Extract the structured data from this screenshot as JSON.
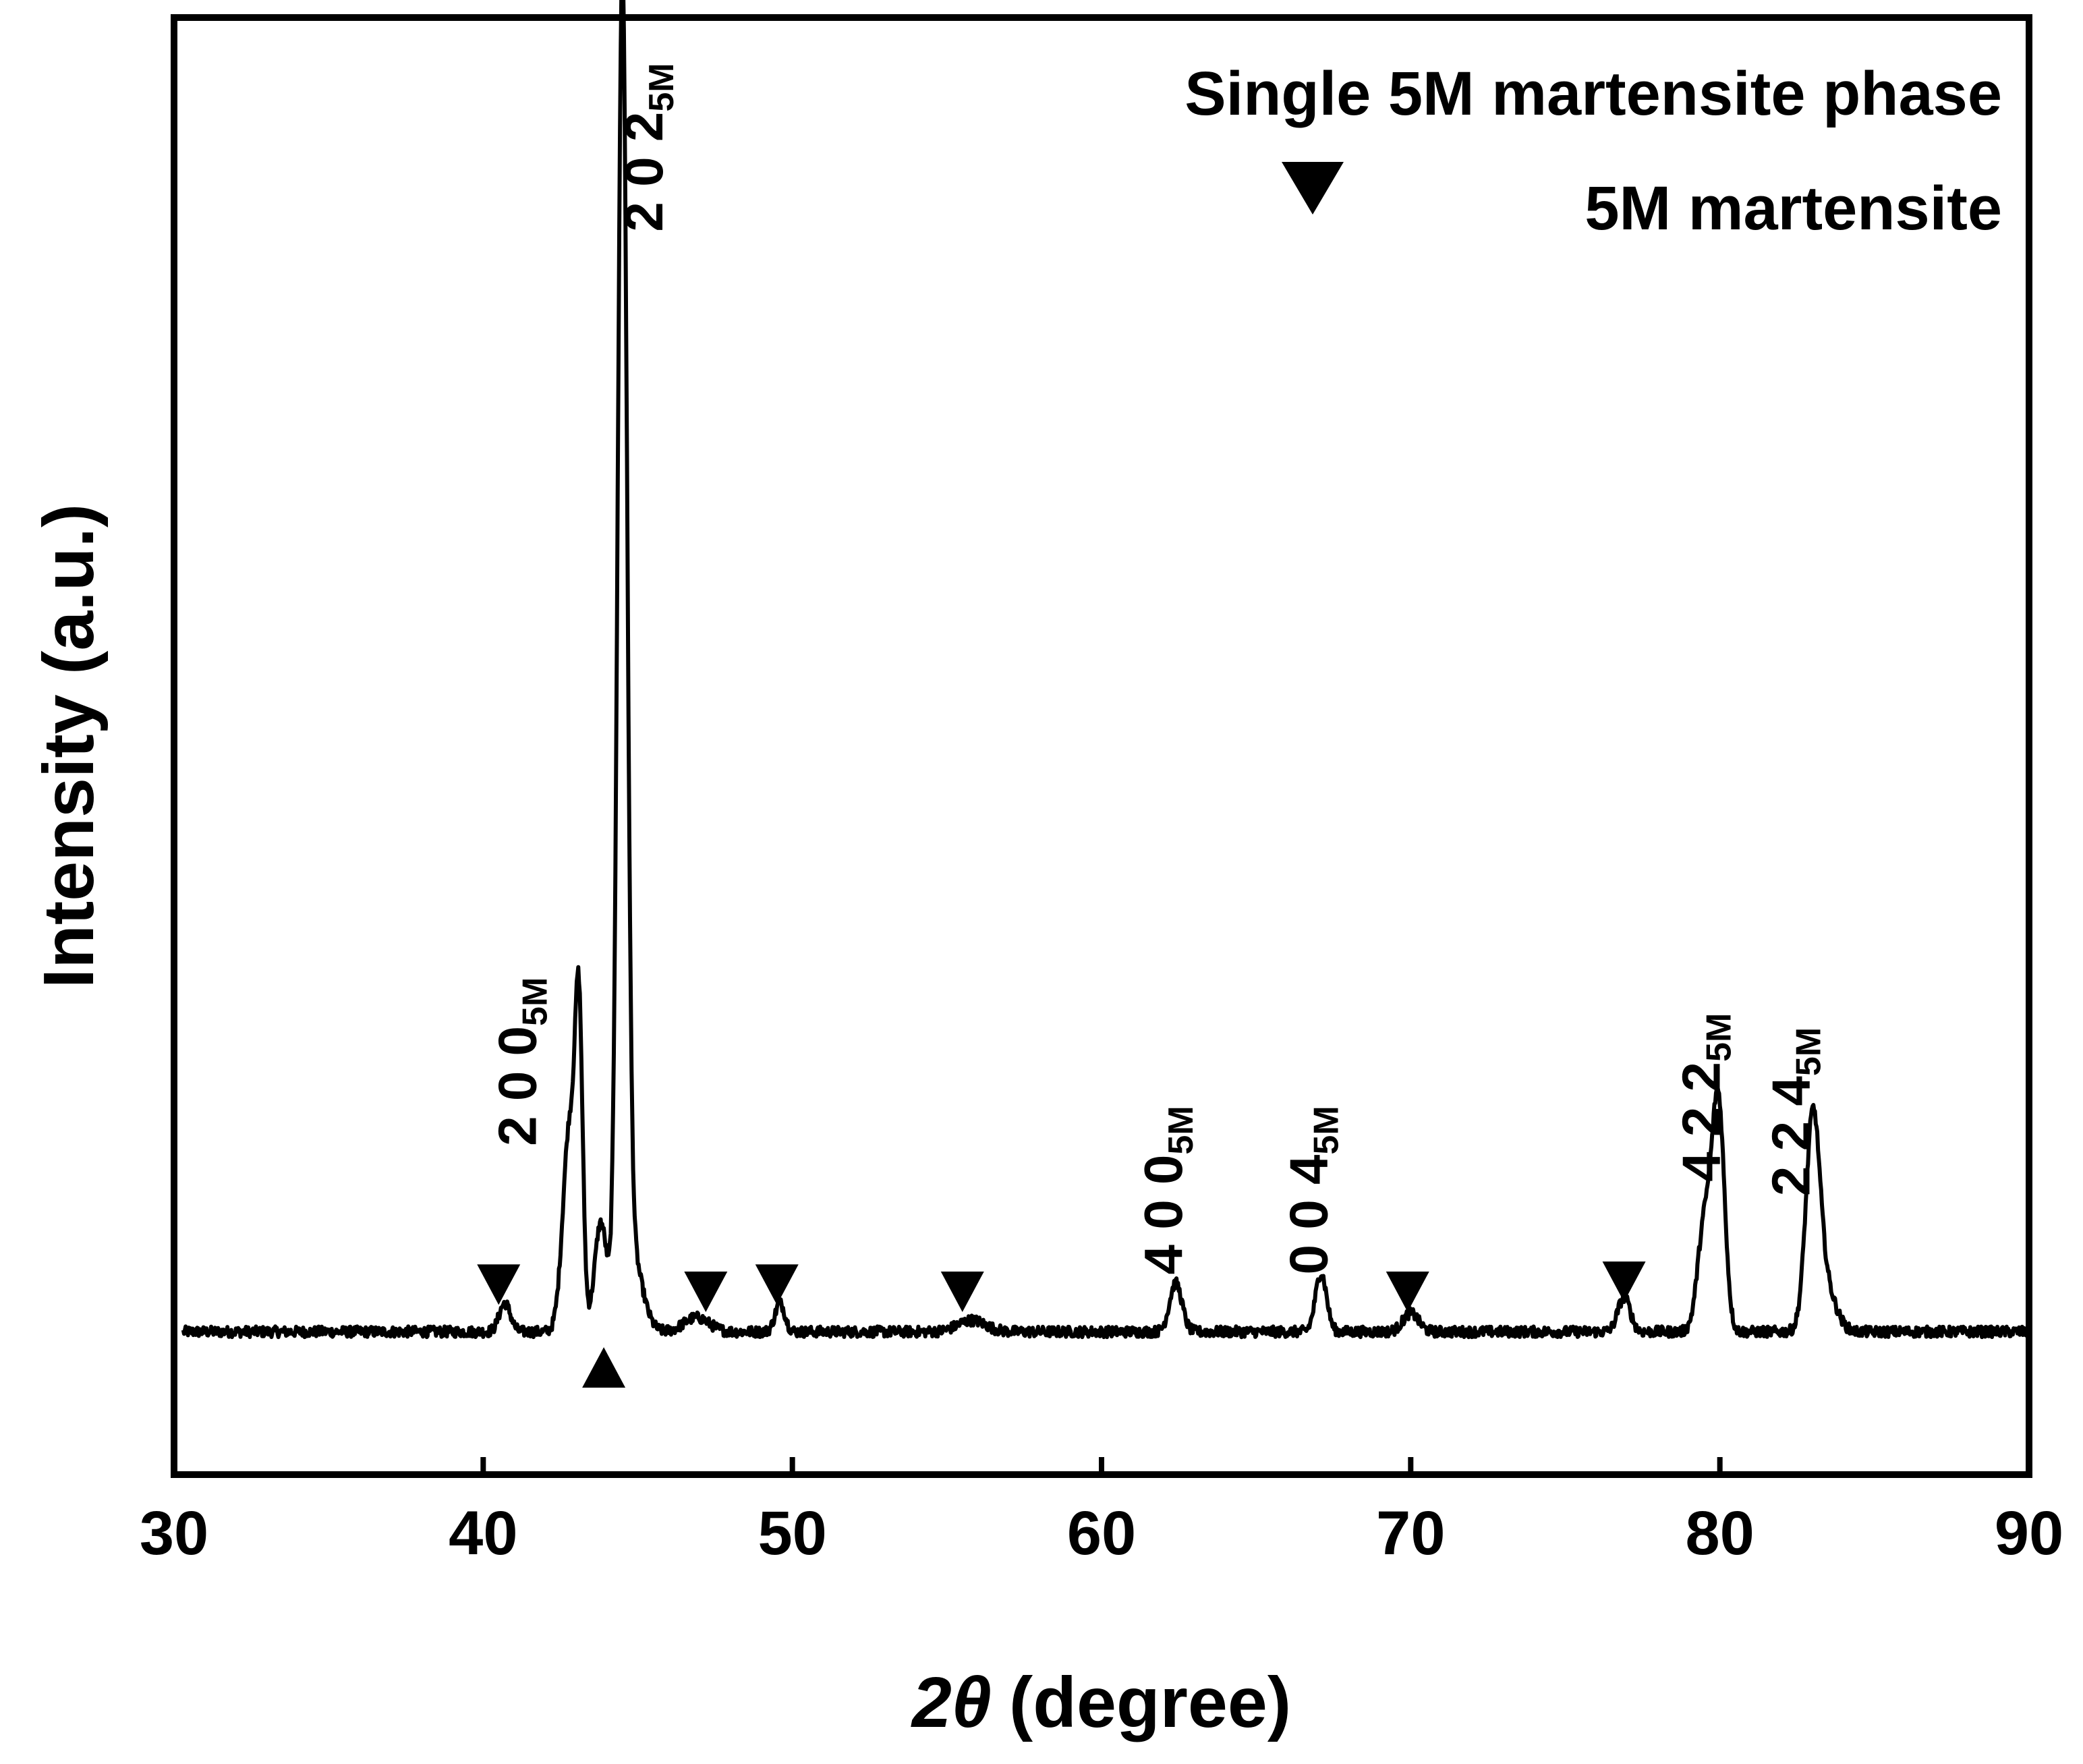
{
  "chart_data": {
    "type": "line",
    "title": "",
    "xlabel": "(degree)",
    "xlabel_symbol": "2θ",
    "ylabel": "Intensity (a.u.)",
    "xlim": [
      30,
      90
    ],
    "ylim": [
      -2,
      100
    ],
    "x_ticks": [
      30,
      40,
      50,
      60,
      70,
      80,
      90
    ],
    "legend": {
      "placement": "top-right",
      "title": "Single 5M martensite phase",
      "entries": [
        {
          "marker": "down-triangle",
          "label": "5M martensite"
        }
      ]
    },
    "series": [
      {
        "name": "XRD pattern",
        "color": "#000000",
        "baseline": 8,
        "peaks": [
          {
            "x": 40.7,
            "height": 2.0,
            "width": 0.18
          },
          {
            "x": 42.8,
            "height": 14.5,
            "width": 0.22
          },
          {
            "x": 43.1,
            "height": 19.0,
            "width": 0.12
          },
          {
            "x": 43.8,
            "height": 7.5,
            "width": 0.2
          },
          {
            "x": 44.5,
            "height": 91.0,
            "width": 0.15
          },
          {
            "x": 44.75,
            "height": 6.0,
            "width": 0.35
          },
          {
            "x": 46.9,
            "height": 1.0,
            "width": 0.4
          },
          {
            "x": 49.6,
            "height": 2.0,
            "width": 0.16
          },
          {
            "x": 55.8,
            "height": 0.8,
            "width": 0.45
          },
          {
            "x": 62.4,
            "height": 3.4,
            "width": 0.2
          },
          {
            "x": 67.1,
            "height": 4.1,
            "width": 0.18
          },
          {
            "x": 70.0,
            "height": 1.3,
            "width": 0.25
          },
          {
            "x": 76.9,
            "height": 2.4,
            "width": 0.2
          },
          {
            "x": 79.5,
            "height": 7.5,
            "width": 0.22
          },
          {
            "x": 79.95,
            "height": 16.0,
            "width": 0.2
          },
          {
            "x": 83.0,
            "height": 13.5,
            "width": 0.22
          },
          {
            "x": 83.35,
            "height": 3.5,
            "width": 0.35
          }
        ]
      }
    ],
    "peak_labels": [
      {
        "hkl": "2 0 0",
        "phase": "5M",
        "x": 41.7,
        "y": 21
      },
      {
        "hkl": "2 0 2",
        "phase": "5M",
        "x": 45.8,
        "y": 85
      },
      {
        "hkl": "4 0 0",
        "phase": "5M",
        "x": 62.6,
        "y": 12
      },
      {
        "hkl": "0 0 4",
        "phase": "5M",
        "x": 67.3,
        "y": 12
      },
      {
        "hkl": "4 2 2",
        "phase": "5M",
        "x": 80.0,
        "y": 18.5
      },
      {
        "hkl": "2 2 4",
        "phase": "5M",
        "x": 82.9,
        "y": 17.5
      }
    ],
    "markers_5M": [
      {
        "x": 40.5,
        "y": 11.3,
        "direction": "down"
      },
      {
        "x": 43.9,
        "y": 5.5,
        "direction": "up"
      },
      {
        "x": 47.2,
        "y": 10.8,
        "direction": "down"
      },
      {
        "x": 49.5,
        "y": 11.3,
        "direction": "down"
      },
      {
        "x": 55.5,
        "y": 10.8,
        "direction": "down"
      },
      {
        "x": 69.9,
        "y": 10.8,
        "direction": "down"
      },
      {
        "x": 76.9,
        "y": 11.5,
        "direction": "down"
      }
    ]
  }
}
